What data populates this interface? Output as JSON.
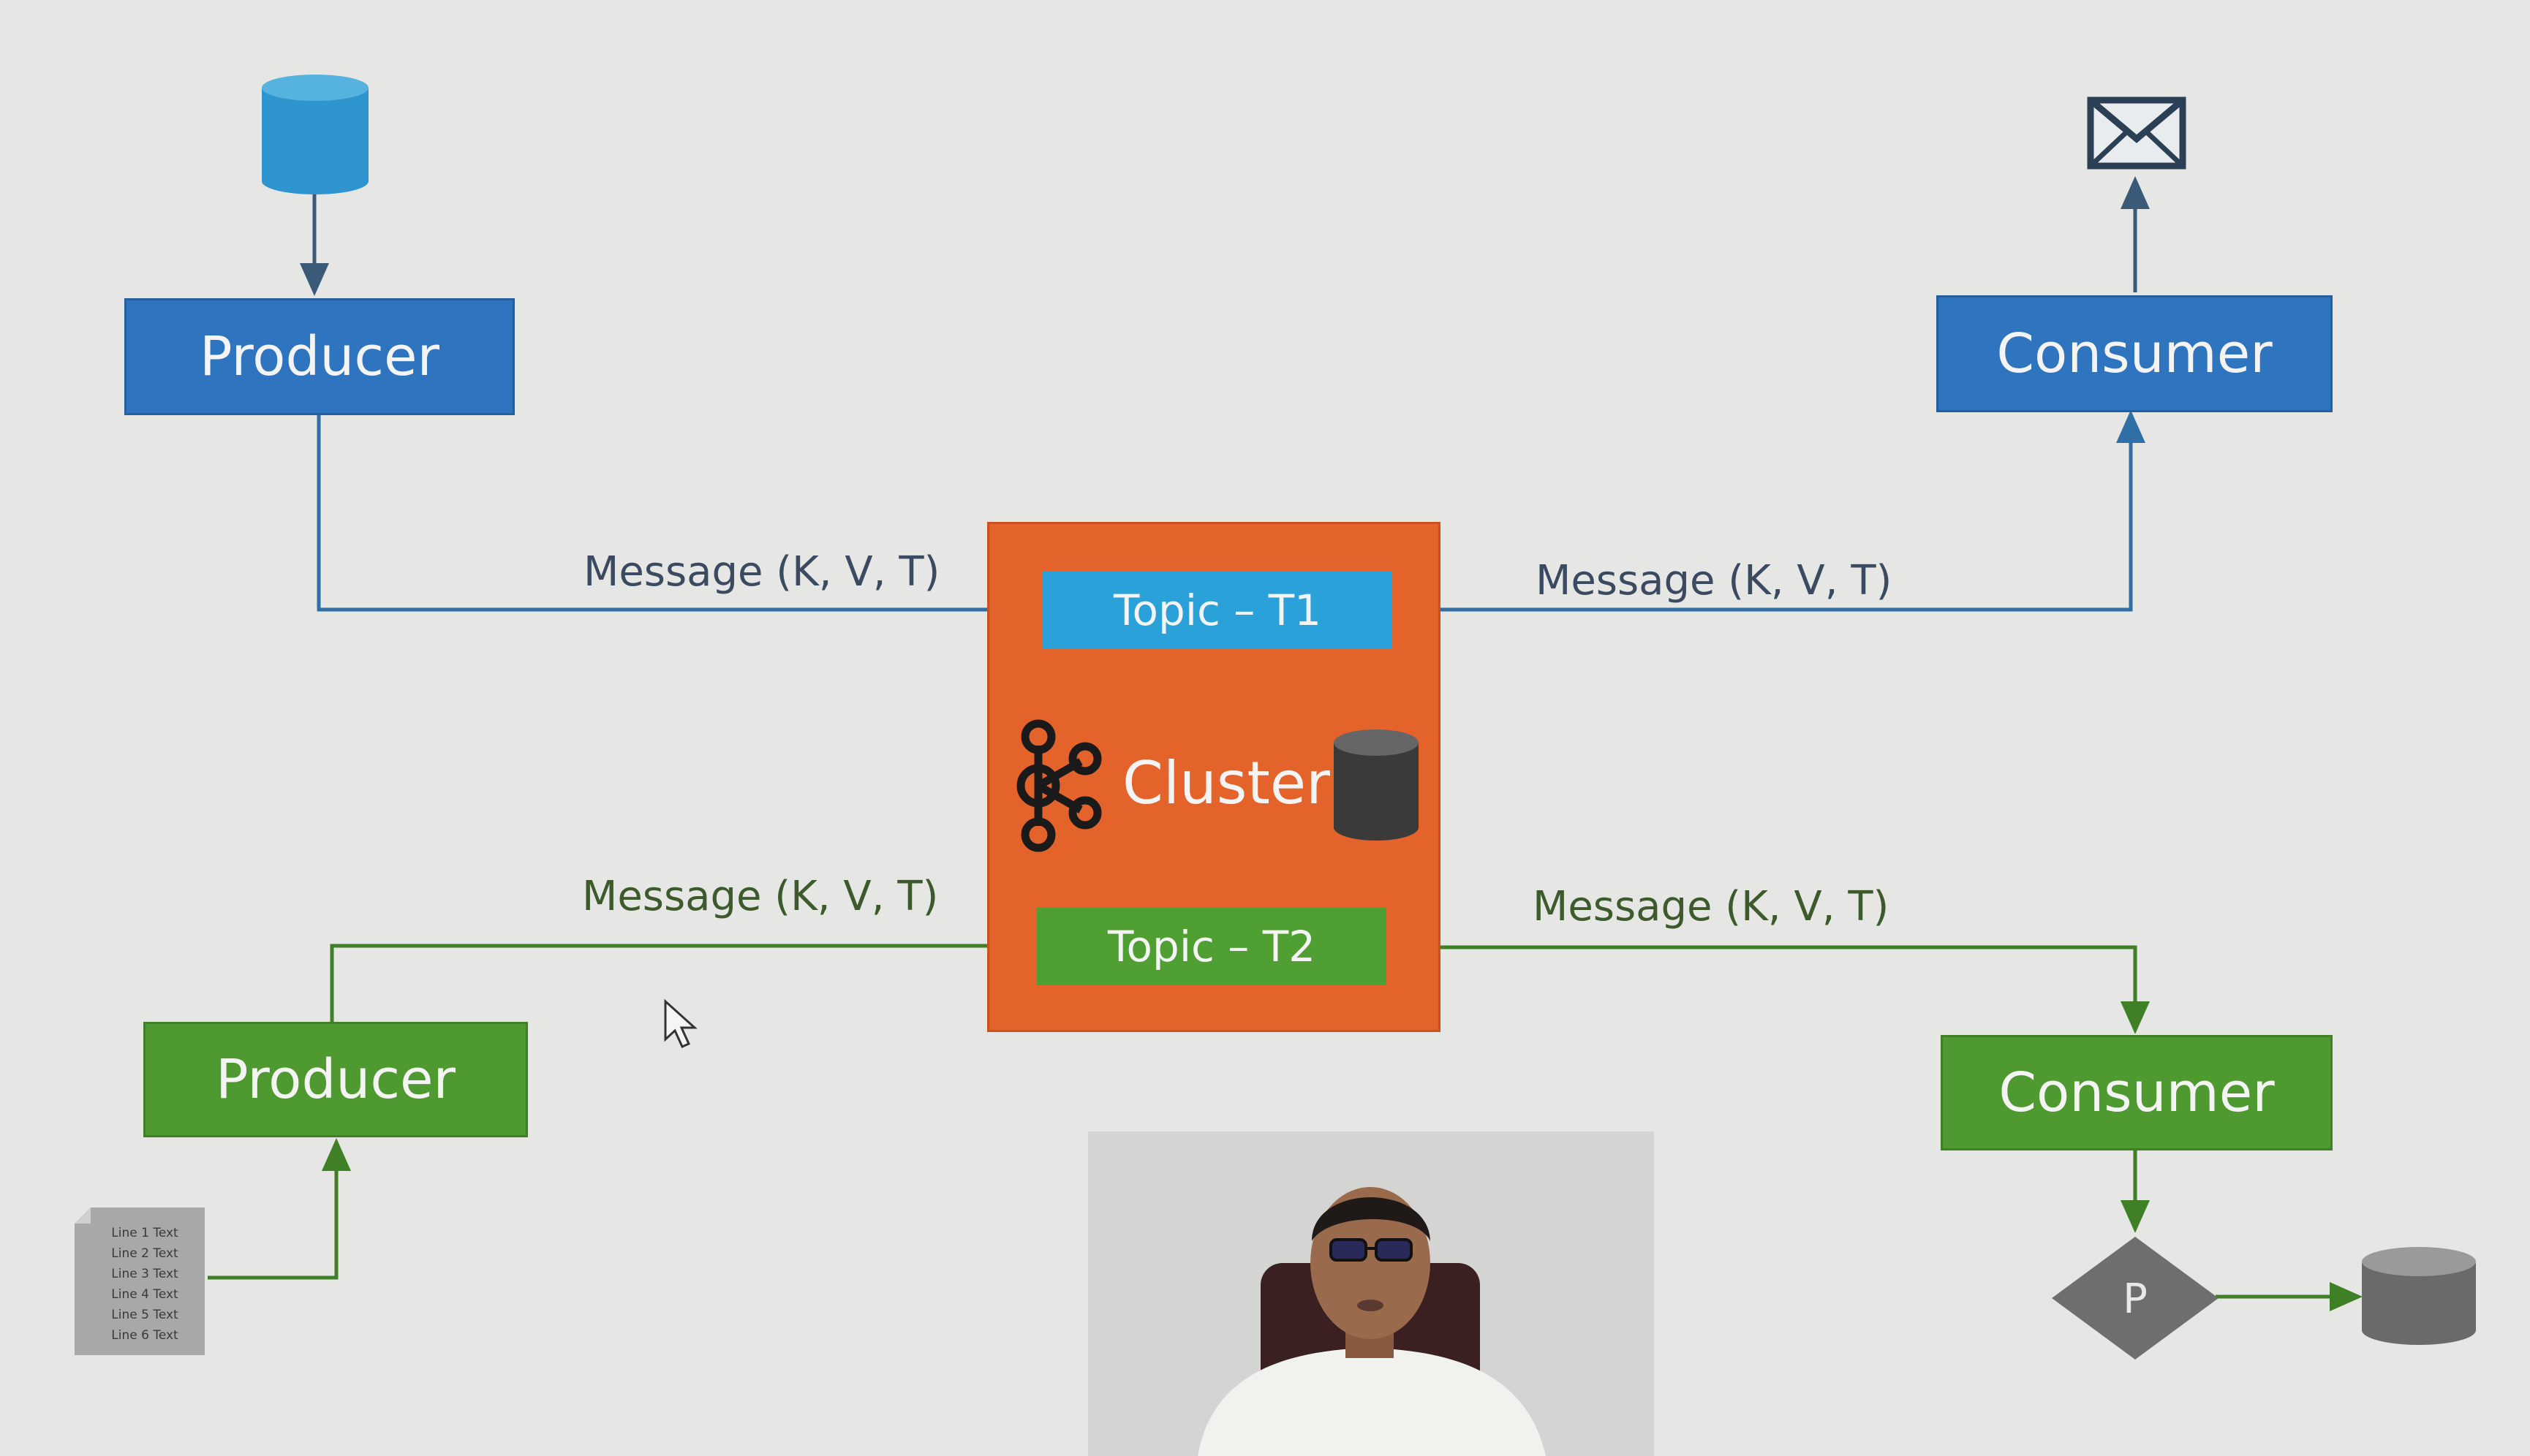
{
  "producer_top": {
    "label": "Producer"
  },
  "producer_bottom": {
    "label": "Producer"
  },
  "consumer_top": {
    "label": "Consumer"
  },
  "consumer_bottom": {
    "label": "Consumer"
  },
  "cluster": {
    "label": "Cluster",
    "topic_t1": "Topic – T1",
    "topic_t2": "Topic – T2"
  },
  "messages": {
    "in_t1": "Message (K, V, T)",
    "out_t1": "Message (K, V, T)",
    "in_t2": "Message (K, V, T)",
    "out_t2": "Message (K, V, T)"
  },
  "file_icon": {
    "lines": [
      "Line 1 Text",
      "Line 2 Text",
      "Line 3 Text",
      "Line 4 Text",
      "Line 5 Text",
      "Line 6 Text"
    ]
  },
  "processor": {
    "label": "P"
  },
  "icons": {
    "source_db": "database-icon",
    "target_mail": "envelope-icon",
    "cluster_logo": "kafka-logo-icon",
    "cluster_storage": "database-icon",
    "sink_db": "database-icon",
    "source_file": "text-file-icon",
    "processor": "diamond-icon",
    "cursor": "mouse-cursor-icon"
  },
  "colors": {
    "blue_box": "#2f74be",
    "green_box": "#4f9a30",
    "topic_t1": "#2aa1d8",
    "topic_t2": "#4f9f32",
    "cluster": "#e4632b",
    "blue_line": "#2f6fa5",
    "green_line": "#3f7f26"
  }
}
